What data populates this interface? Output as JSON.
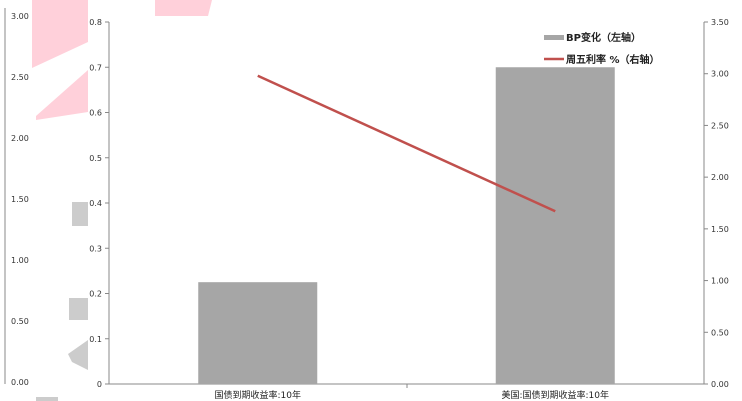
{
  "colors": {
    "bar": "#a6a6a6",
    "line": "#c0504d",
    "axis": "#888888",
    "ghost_pink": "#ffd0da",
    "ghost_grey": "#cccccc"
  },
  "background_artifact": {
    "left_axis_ticks": [
      "0.00",
      "0.50",
      "1.00",
      "1.50",
      "2.00",
      "2.50",
      "3.00"
    ]
  },
  "chart_data": {
    "type": "bar",
    "title": "",
    "xlabel": "",
    "categories": [
      "国债到期收益率:10年",
      "美国:国债到期收益率:10年"
    ],
    "series": [
      {
        "name": "BP变化（左轴）",
        "type": "bar",
        "axis": "left",
        "values": [
          0.225,
          0.7
        ]
      },
      {
        "name": "周五利率 %（右轴）",
        "type": "line",
        "axis": "right",
        "values": [
          2.98,
          1.67
        ]
      }
    ],
    "y_left": {
      "ylim": [
        0,
        0.8
      ],
      "ticks": [
        "0",
        "0.1",
        "0.2",
        "0.3",
        "0.4",
        "0.5",
        "0.6",
        "0.7",
        "0.8"
      ]
    },
    "y_right": {
      "ylim": [
        0,
        3.5
      ],
      "ticks": [
        "0.00",
        "0.50",
        "1.00",
        "1.50",
        "2.00",
        "2.50",
        "3.00",
        "3.50"
      ]
    },
    "grid": false,
    "legend_position": "top-right"
  }
}
